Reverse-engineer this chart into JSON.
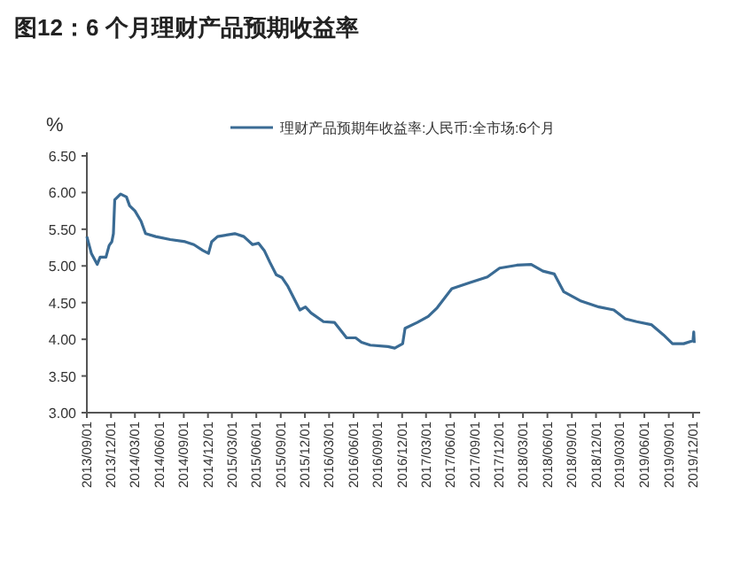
{
  "chart_data": {
    "type": "line",
    "title": "图12：6 个月理财产品预期收益率",
    "ylabel": "%",
    "legend": "top",
    "grid": false,
    "line_style": "solid",
    "marker": "none",
    "xlim": [
      "2013-09-01",
      "2019-12-28"
    ],
    "xticks": [
      {
        "value": "2013-09-01",
        "label": "2013/09/01"
      },
      {
        "value": "2013-12-01",
        "label": "2013/12/01"
      },
      {
        "value": "2014-03-01",
        "label": "2014/03/01"
      },
      {
        "value": "2014-06-01",
        "label": "2014/06/01"
      },
      {
        "value": "2014-09-01",
        "label": "2014/09/01"
      },
      {
        "value": "2014-12-01",
        "label": "2014/12/01"
      },
      {
        "value": "2015-03-01",
        "label": "2015/03/01"
      },
      {
        "value": "2015-06-01",
        "label": "2015/06/01"
      },
      {
        "value": "2015-09-01",
        "label": "2015/09/01"
      },
      {
        "value": "2015-12-01",
        "label": "2015/12/01"
      },
      {
        "value": "2016-03-01",
        "label": "2016/03/01"
      },
      {
        "value": "2016-06-01",
        "label": "2016/06/01"
      },
      {
        "value": "2016-09-01",
        "label": "2016/09/01"
      },
      {
        "value": "2016-12-01",
        "label": "2016/12/01"
      },
      {
        "value": "2017-03-01",
        "label": "2017/03/01"
      },
      {
        "value": "2017-06-01",
        "label": "2017/06/01"
      },
      {
        "value": "2017-09-01",
        "label": "2017/09/01"
      },
      {
        "value": "2017-12-01",
        "label": "2017/12/01"
      },
      {
        "value": "2018-03-01",
        "label": "2018/03/01"
      },
      {
        "value": "2018-06-01",
        "label": "2018/06/01"
      },
      {
        "value": "2018-09-01",
        "label": "2018/09/01"
      },
      {
        "value": "2018-12-01",
        "label": "2018/12/01"
      },
      {
        "value": "2019-03-01",
        "label": "2019/03/01"
      },
      {
        "value": "2019-06-01",
        "label": "2019/06/01"
      },
      {
        "value": "2019-09-01",
        "label": "2019/09/01"
      },
      {
        "value": "2019-12-01",
        "label": "2019/12/01"
      }
    ],
    "ylim": [
      3,
      6.5
    ],
    "yticks": [
      {
        "value": 3,
        "label": "3.00"
      },
      {
        "value": 3.5,
        "label": "3.50"
      },
      {
        "value": 4,
        "label": "4.00"
      },
      {
        "value": 4.5,
        "label": "4.50"
      },
      {
        "value": 5,
        "label": "5.00"
      },
      {
        "value": 5.5,
        "label": "5.50"
      },
      {
        "value": 6,
        "label": "6.00"
      },
      {
        "value": 6.5,
        "label": "6.50"
      }
    ],
    "x": [
      "2013-09-01",
      "2013-09-18",
      "2013-10-10",
      "2013-10-21",
      "2013-11-12",
      "2013-11-24",
      "2013-12-04",
      "2013-12-10",
      "2013-12-15",
      "2014-01-06",
      "2014-01-28",
      "2014-02-09",
      "2014-03-01",
      "2014-03-24",
      "2014-04-10",
      "2014-05-18",
      "2014-07-12",
      "2014-09-06",
      "2014-10-09",
      "2014-11-12",
      "2014-12-03",
      "2014-12-15",
      "2015-01-06",
      "2015-03-12",
      "2015-04-15",
      "2015-05-18",
      "2015-06-09",
      "2015-07-01",
      "2015-07-22",
      "2015-08-15",
      "2015-09-06",
      "2015-09-28",
      "2015-11-12",
      "2015-12-03",
      "2015-12-24",
      "2016-02-09",
      "2016-03-21",
      "2016-05-06",
      "2016-06-09",
      "2016-07-01",
      "2016-08-03",
      "2016-10-09",
      "2016-11-03",
      "2016-12-03",
      "2016-12-12",
      "2017-01-27",
      "2017-03-09",
      "2017-04-12",
      "2017-06-06",
      "2017-08-12",
      "2017-10-18",
      "2017-12-03",
      "2018-02-06",
      "2018-04-01",
      "2018-05-15",
      "2018-06-27",
      "2018-08-01",
      "2018-10-06",
      "2018-12-12",
      "2019-02-06",
      "2019-03-21",
      "2019-05-03",
      "2019-06-27",
      "2019-08-12",
      "2019-09-15",
      "2019-10-27",
      "2019-12-01",
      "2019-12-04",
      "2019-12-06"
    ],
    "series": [
      {
        "name": "理财产品预期年收益率:人民币:全市场:6个月",
        "color": "#3a6b94",
        "values": [
          5.4,
          5.17,
          5.02,
          5.12,
          5.12,
          5.28,
          5.33,
          5.44,
          5.9,
          5.98,
          5.94,
          5.82,
          5.75,
          5.61,
          5.44,
          5.4,
          5.36,
          5.33,
          5.29,
          5.21,
          5.17,
          5.33,
          5.4,
          5.44,
          5.4,
          5.29,
          5.31,
          5.21,
          5.05,
          4.88,
          4.84,
          4.72,
          4.4,
          4.44,
          4.36,
          4.24,
          4.23,
          4.02,
          4.02,
          3.96,
          3.92,
          3.9,
          3.88,
          3.94,
          4.15,
          4.23,
          4.31,
          4.43,
          4.69,
          4.77,
          4.85,
          4.97,
          5.01,
          5.02,
          4.93,
          4.89,
          4.65,
          4.52,
          4.44,
          4.4,
          4.28,
          4.24,
          4.2,
          4.06,
          3.94,
          3.94,
          3.98,
          4.1,
          3.95
        ]
      }
    ]
  }
}
